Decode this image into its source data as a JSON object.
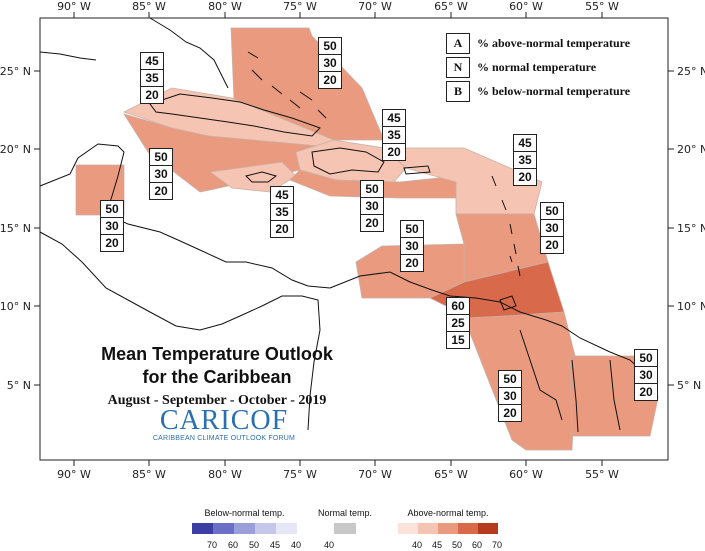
{
  "map": {
    "lon_labels": [
      "90° W",
      "85° W",
      "80° W",
      "75° W",
      "70° W",
      "65° W",
      "60° W",
      "55° W"
    ],
    "lat_labels": [
      "25° N",
      "20° N",
      "15° N",
      "10° N",
      "5° N"
    ]
  },
  "legend": {
    "items": [
      {
        "key": "A",
        "text": "% above-normal temperature"
      },
      {
        "key": "N",
        "text": "% normal temperature"
      },
      {
        "key": "B",
        "text": "% below-normal temperature"
      }
    ]
  },
  "title": {
    "line1": "Mean Temperature Outlook",
    "line2": "for the Caribbean",
    "period": "August - September - October - 2019"
  },
  "logo": {
    "name": "CARICOF",
    "tagline": "CARIBBEAN CLIMATE OUTLOOK FORUM"
  },
  "colorbar": {
    "below": {
      "title": "Below-normal temp.",
      "ticks": [
        "70",
        "60",
        "50",
        "45",
        "40"
      ],
      "colors": [
        "#3b3fa3",
        "#6b6fc6",
        "#9a9ed9",
        "#c4c6ea",
        "#e6e7f6"
      ]
    },
    "normal": {
      "title": "Normal temp.",
      "ticks": [
        "40"
      ],
      "colors": [
        "#c8c8c8"
      ]
    },
    "above": {
      "title": "Above-normal temp.",
      "ticks": [
        "40",
        "45",
        "50",
        "60",
        "70"
      ],
      "colors": [
        "#fbe3dc",
        "#f5c4b2",
        "#e99a7f",
        "#d9694b",
        "#b53a1f"
      ]
    }
  },
  "regions": [
    {
      "id": "bahamas",
      "probs": {
        "A": "50",
        "N": "30",
        "B": "20"
      },
      "color": "#e99a7f"
    },
    {
      "id": "cuba",
      "probs": {
        "A": "45",
        "N": "35",
        "B": "20"
      },
      "color": "#f5c4b2"
    },
    {
      "id": "central-cuba",
      "probs": {
        "A": "50",
        "N": "30",
        "B": "20"
      },
      "color": "#e99a7f"
    },
    {
      "id": "belize",
      "probs": {
        "A": "50",
        "N": "30",
        "B": "20"
      },
      "color": "#e99a7f"
    },
    {
      "id": "jamaica",
      "probs": {
        "A": "45",
        "N": "35",
        "B": "20"
      },
      "color": "#f5c4b2"
    },
    {
      "id": "hispaniola",
      "probs": {
        "A": "45",
        "N": "35",
        "B": "20"
      },
      "color": "#f5c4b2"
    },
    {
      "id": "puerto-rico",
      "probs": {
        "A": "50",
        "N": "30",
        "B": "20"
      },
      "color": "#e99a7f"
    },
    {
      "id": "leewards",
      "probs": {
        "A": "45",
        "N": "35",
        "B": "20"
      },
      "color": "#f5c4b2"
    },
    {
      "id": "windwards",
      "probs": {
        "A": "50",
        "N": "30",
        "B": "20"
      },
      "color": "#e99a7f"
    },
    {
      "id": "abc-islands",
      "probs": {
        "A": "50",
        "N": "30",
        "B": "20"
      },
      "color": "#e99a7f"
    },
    {
      "id": "trinidad",
      "probs": {
        "A": "60",
        "N": "25",
        "B": "15"
      },
      "color": "#d9694b"
    },
    {
      "id": "guyana",
      "probs": {
        "A": "50",
        "N": "30",
        "B": "20"
      },
      "color": "#e99a7f"
    },
    {
      "id": "suriname",
      "probs": {
        "A": "50",
        "N": "30",
        "B": "20"
      },
      "color": "#e99a7f"
    }
  ]
}
